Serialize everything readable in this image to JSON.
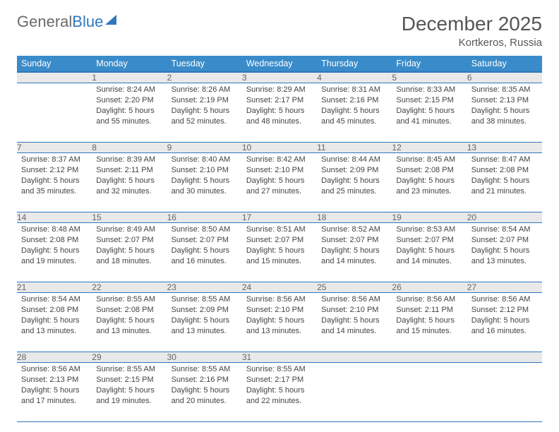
{
  "logo": {
    "word1": "General",
    "word2": "Blue"
  },
  "header": {
    "month_year": "December 2025",
    "location": "Kortkeros, Russia"
  },
  "colors": {
    "header_bg": "#3a8bc9",
    "header_border": "#2f78bf",
    "row_border": "#2f78bf",
    "daynum_bg": "#e9e9e9",
    "text": "#444444",
    "title": "#555555"
  },
  "weekdays": [
    "Sunday",
    "Monday",
    "Tuesday",
    "Wednesday",
    "Thursday",
    "Friday",
    "Saturday"
  ],
  "weeks": [
    {
      "nums": [
        "",
        "1",
        "2",
        "3",
        "4",
        "5",
        "6"
      ],
      "cells": [
        null,
        {
          "sunrise": "8:24 AM",
          "sunset": "2:20 PM",
          "day_h": 5,
          "day_m": 55
        },
        {
          "sunrise": "8:26 AM",
          "sunset": "2:19 PM",
          "day_h": 5,
          "day_m": 52
        },
        {
          "sunrise": "8:29 AM",
          "sunset": "2:17 PM",
          "day_h": 5,
          "day_m": 48
        },
        {
          "sunrise": "8:31 AM",
          "sunset": "2:16 PM",
          "day_h": 5,
          "day_m": 45
        },
        {
          "sunrise": "8:33 AM",
          "sunset": "2:15 PM",
          "day_h": 5,
          "day_m": 41
        },
        {
          "sunrise": "8:35 AM",
          "sunset": "2:13 PM",
          "day_h": 5,
          "day_m": 38
        }
      ]
    },
    {
      "nums": [
        "7",
        "8",
        "9",
        "10",
        "11",
        "12",
        "13"
      ],
      "cells": [
        {
          "sunrise": "8:37 AM",
          "sunset": "2:12 PM",
          "day_h": 5,
          "day_m": 35
        },
        {
          "sunrise": "8:39 AM",
          "sunset": "2:11 PM",
          "day_h": 5,
          "day_m": 32
        },
        {
          "sunrise": "8:40 AM",
          "sunset": "2:10 PM",
          "day_h": 5,
          "day_m": 30
        },
        {
          "sunrise": "8:42 AM",
          "sunset": "2:10 PM",
          "day_h": 5,
          "day_m": 27
        },
        {
          "sunrise": "8:44 AM",
          "sunset": "2:09 PM",
          "day_h": 5,
          "day_m": 25
        },
        {
          "sunrise": "8:45 AM",
          "sunset": "2:08 PM",
          "day_h": 5,
          "day_m": 23
        },
        {
          "sunrise": "8:47 AM",
          "sunset": "2:08 PM",
          "day_h": 5,
          "day_m": 21
        }
      ]
    },
    {
      "nums": [
        "14",
        "15",
        "16",
        "17",
        "18",
        "19",
        "20"
      ],
      "cells": [
        {
          "sunrise": "8:48 AM",
          "sunset": "2:08 PM",
          "day_h": 5,
          "day_m": 19
        },
        {
          "sunrise": "8:49 AM",
          "sunset": "2:07 PM",
          "day_h": 5,
          "day_m": 18
        },
        {
          "sunrise": "8:50 AM",
          "sunset": "2:07 PM",
          "day_h": 5,
          "day_m": 16
        },
        {
          "sunrise": "8:51 AM",
          "sunset": "2:07 PM",
          "day_h": 5,
          "day_m": 15
        },
        {
          "sunrise": "8:52 AM",
          "sunset": "2:07 PM",
          "day_h": 5,
          "day_m": 14
        },
        {
          "sunrise": "8:53 AM",
          "sunset": "2:07 PM",
          "day_h": 5,
          "day_m": 14
        },
        {
          "sunrise": "8:54 AM",
          "sunset": "2:07 PM",
          "day_h": 5,
          "day_m": 13
        }
      ]
    },
    {
      "nums": [
        "21",
        "22",
        "23",
        "24",
        "25",
        "26",
        "27"
      ],
      "cells": [
        {
          "sunrise": "8:54 AM",
          "sunset": "2:08 PM",
          "day_h": 5,
          "day_m": 13
        },
        {
          "sunrise": "8:55 AM",
          "sunset": "2:08 PM",
          "day_h": 5,
          "day_m": 13
        },
        {
          "sunrise": "8:55 AM",
          "sunset": "2:09 PM",
          "day_h": 5,
          "day_m": 13
        },
        {
          "sunrise": "8:56 AM",
          "sunset": "2:10 PM",
          "day_h": 5,
          "day_m": 13
        },
        {
          "sunrise": "8:56 AM",
          "sunset": "2:10 PM",
          "day_h": 5,
          "day_m": 14
        },
        {
          "sunrise": "8:56 AM",
          "sunset": "2:11 PM",
          "day_h": 5,
          "day_m": 15
        },
        {
          "sunrise": "8:56 AM",
          "sunset": "2:12 PM",
          "day_h": 5,
          "day_m": 16
        }
      ]
    },
    {
      "nums": [
        "28",
        "29",
        "30",
        "31",
        "",
        "",
        ""
      ],
      "cells": [
        {
          "sunrise": "8:56 AM",
          "sunset": "2:13 PM",
          "day_h": 5,
          "day_m": 17
        },
        {
          "sunrise": "8:55 AM",
          "sunset": "2:15 PM",
          "day_h": 5,
          "day_m": 19
        },
        {
          "sunrise": "8:55 AM",
          "sunset": "2:16 PM",
          "day_h": 5,
          "day_m": 20
        },
        {
          "sunrise": "8:55 AM",
          "sunset": "2:17 PM",
          "day_h": 5,
          "day_m": 22
        },
        null,
        null,
        null
      ]
    }
  ],
  "labels": {
    "sunrise": "Sunrise:",
    "sunset": "Sunset:",
    "daylight": "Daylight:",
    "hours": "hours",
    "and": "and",
    "minutes": "minutes."
  }
}
